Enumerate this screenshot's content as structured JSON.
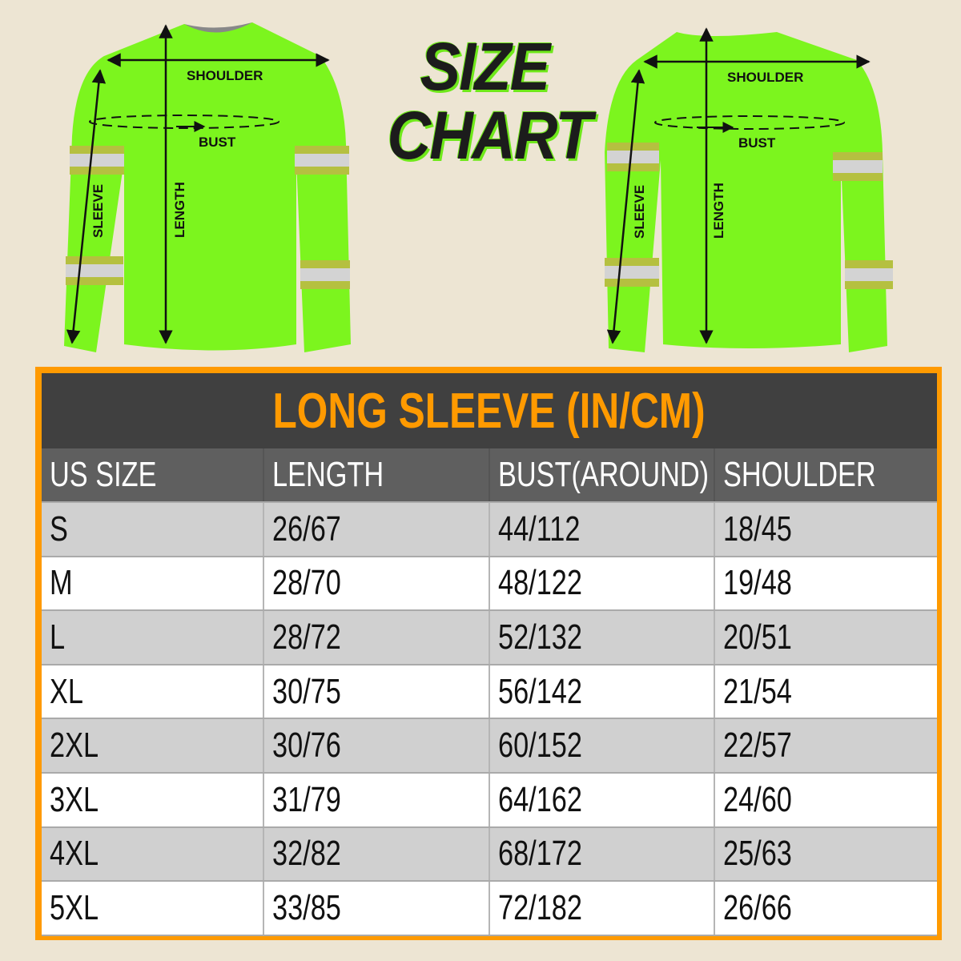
{
  "title": {
    "line1": "SIZE",
    "line2": "CHART"
  },
  "diagram_labels": {
    "shoulder": "SHOULDER",
    "bust": "BUST",
    "sleeve": "SLEEVE",
    "length": "LENGTH"
  },
  "colors": {
    "sweater": "#7cf51e",
    "reflective_stripe": "#d3d3d3",
    "stripe_border": "#b5c040",
    "table_border": "#ff9a00",
    "title_bg": "#404040",
    "header_bg": "#5f5f5f",
    "background": "#ede5d3"
  },
  "table": {
    "title": "LONG SLEEVE (IN/CM)",
    "columns": [
      "US SIZE",
      "LENGTH",
      "BUST(AROUND)",
      "SHOULDER"
    ],
    "rows": [
      [
        "S",
        "26/67",
        "44/112",
        "18/45"
      ],
      [
        "M",
        "28/70",
        "48/122",
        "19/48"
      ],
      [
        "L",
        "28/72",
        "52/132",
        "20/51"
      ],
      [
        "XL",
        "30/75",
        "56/142",
        "21/54"
      ],
      [
        "2XL",
        "30/76",
        "60/152",
        "22/57"
      ],
      [
        "3XL",
        "31/79",
        "64/162",
        "24/60"
      ],
      [
        "4XL",
        "32/82",
        "68/172",
        "25/63"
      ],
      [
        "5XL",
        "33/85",
        "72/182",
        "26/66"
      ]
    ]
  }
}
